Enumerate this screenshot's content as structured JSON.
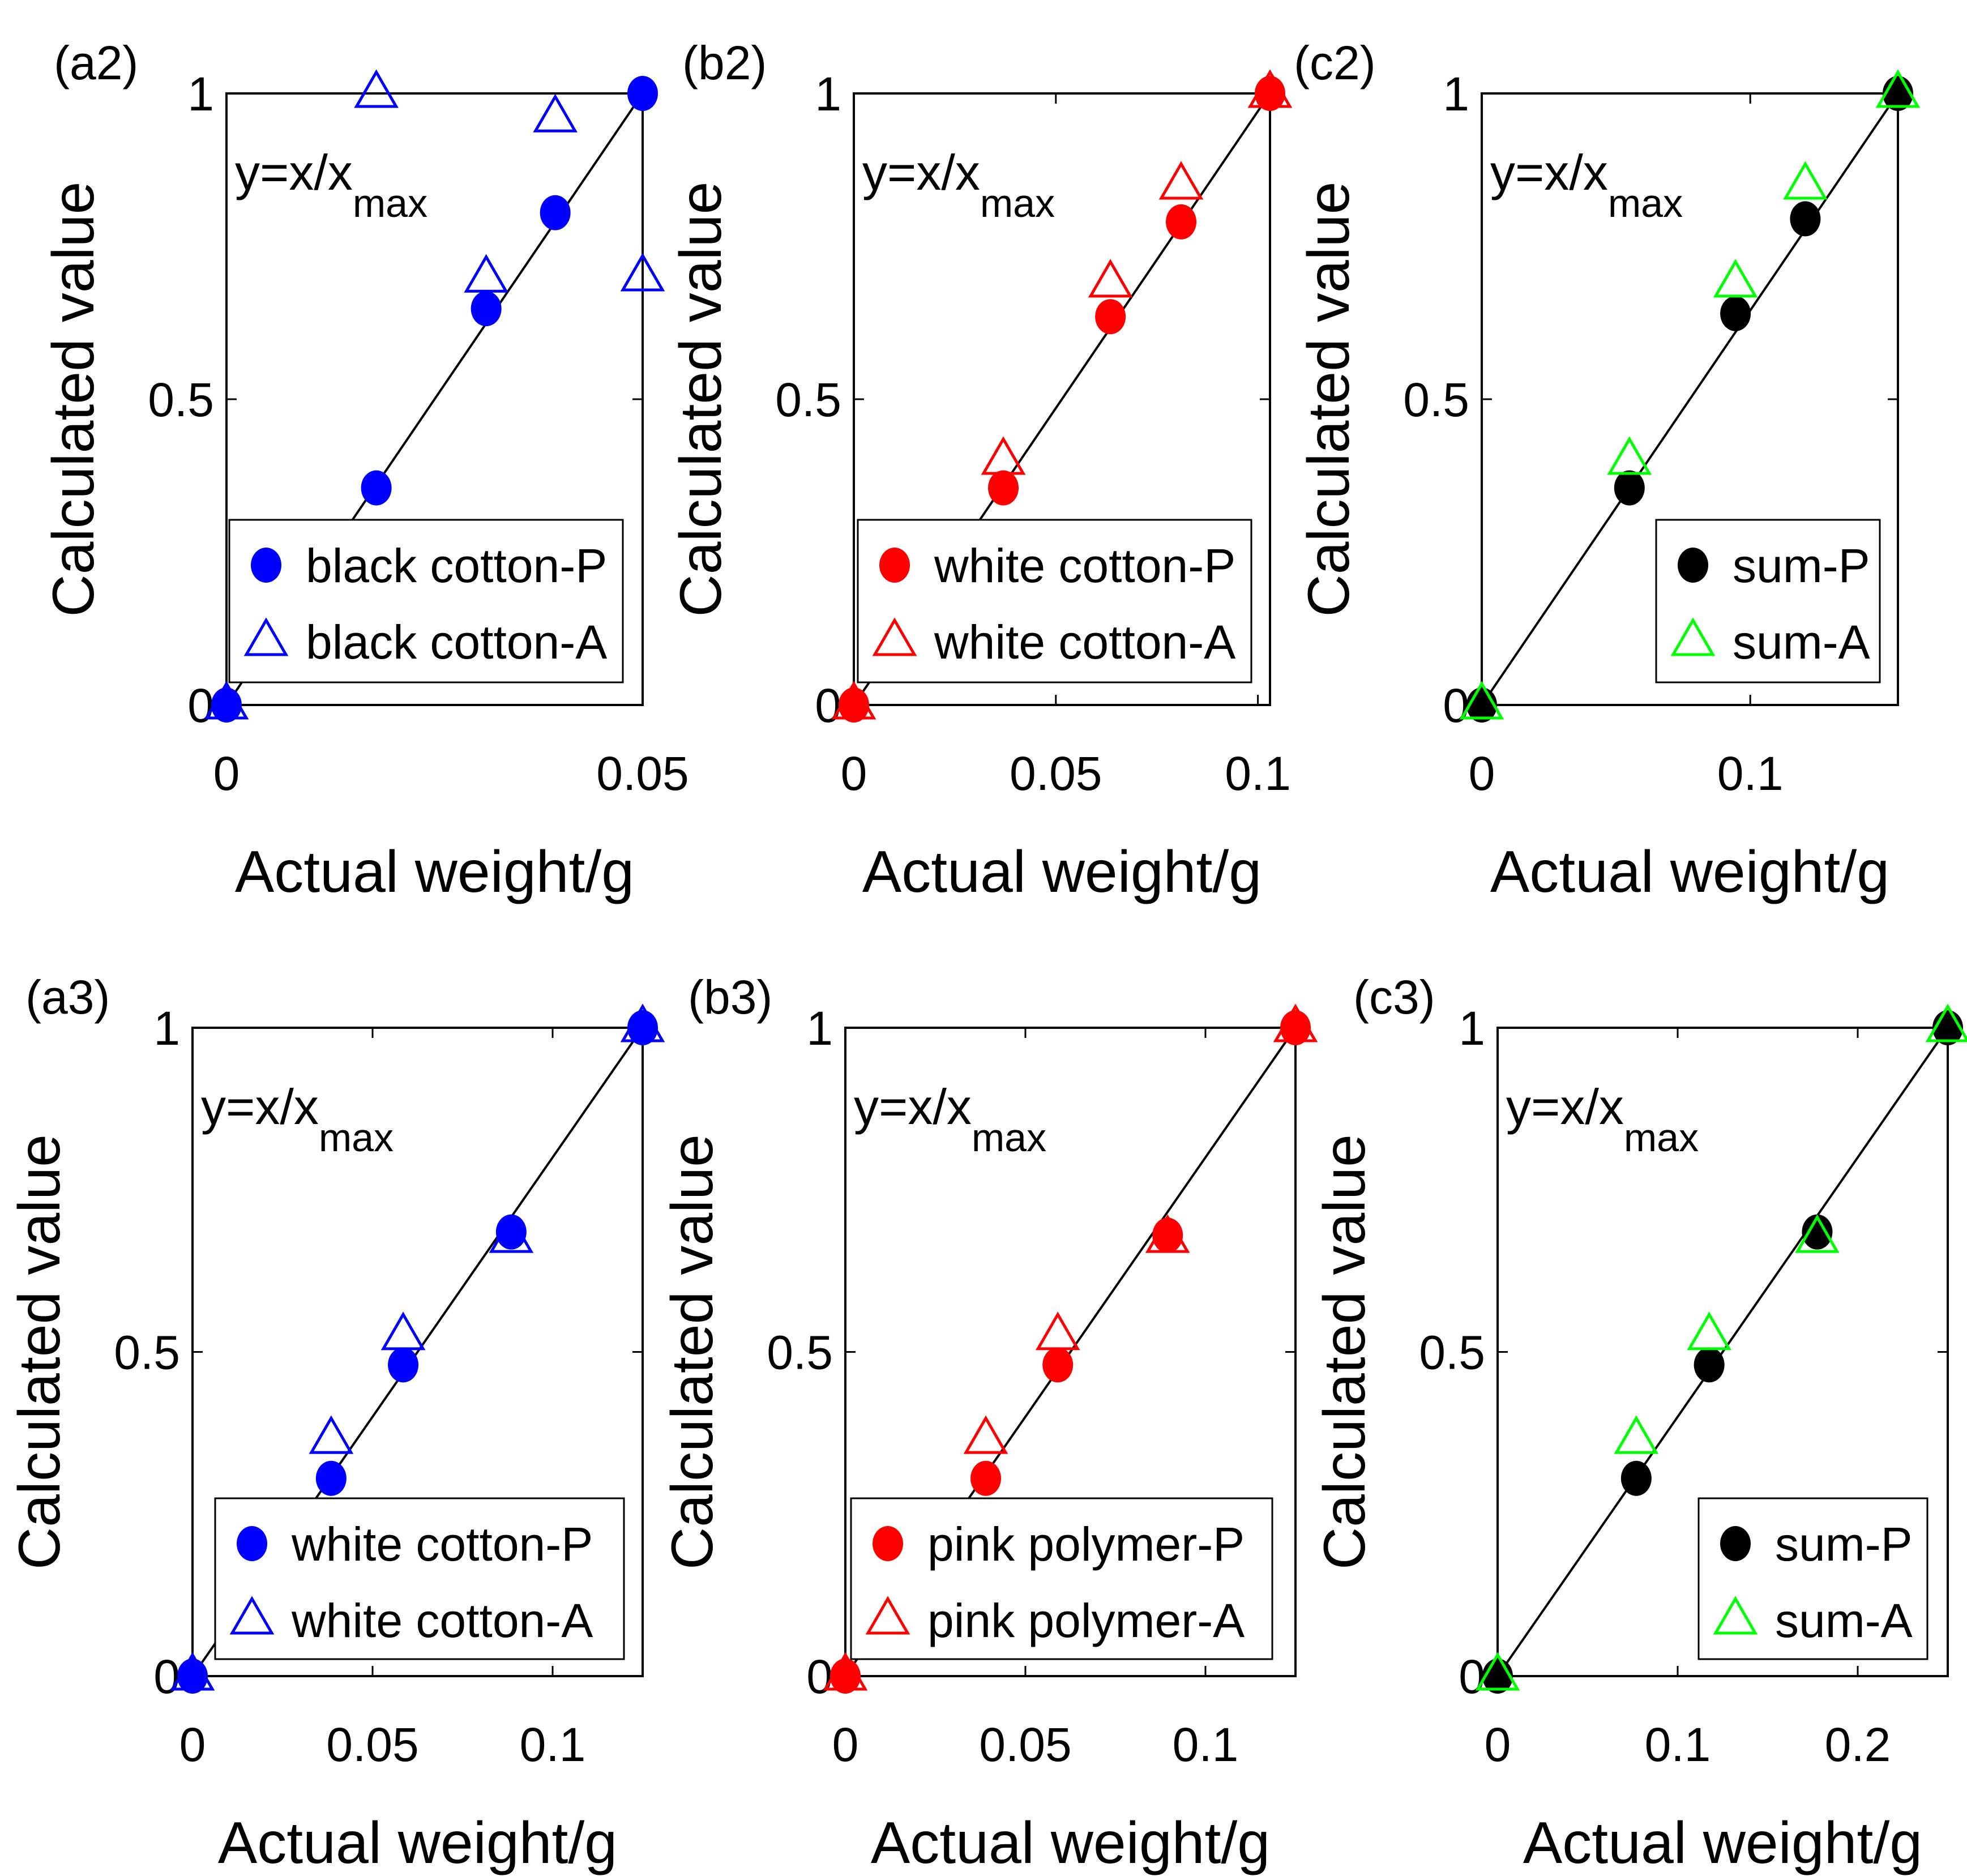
{
  "chart_data": [
    {
      "type": "scatter",
      "panel_label": "(a2)",
      "xlabel": "Actual weight/g",
      "ylabel": "Calculated value",
      "xlim": [
        0,
        0.05
      ],
      "ylim": [
        0,
        1
      ],
      "xticks": [
        {
          "value": 0,
          "label": "0"
        },
        {
          "value": 0.05,
          "label": "0.05"
        }
      ],
      "yticks": [
        {
          "value": 0,
          "label": "0"
        },
        {
          "value": 0.5,
          "label": "0.5"
        },
        {
          "value": 1,
          "label": "1"
        }
      ],
      "annotation": {
        "main": "y=x/x",
        "sub": "max"
      },
      "fit_line": {
        "x": [
          0,
          0.05
        ],
        "y": [
          0,
          1
        ]
      },
      "legend_position": "bottom-right",
      "series": [
        {
          "name": "black cotton-P",
          "marker": "circle",
          "color": "#0000ff",
          "x": [
            0,
            0.018,
            0.0312,
            0.0395,
            0.05
          ],
          "y": [
            0,
            0.355,
            0.648,
            0.805,
            1.0
          ]
        },
        {
          "name": "black cotton-A",
          "marker": "triangle",
          "color": "#0000ff",
          "x": [
            0,
            0.018,
            0.0312,
            0.0395,
            0.05
          ],
          "y": [
            0,
            1.0,
            0.698,
            0.96,
            0.7
          ]
        }
      ]
    },
    {
      "type": "scatter",
      "panel_label": "(b2)",
      "xlabel": "Actual weight/g",
      "ylabel": "Calculated value",
      "xlim": [
        0,
        0.103
      ],
      "ylim": [
        0,
        1
      ],
      "xticks": [
        {
          "value": 0,
          "label": "0"
        },
        {
          "value": 0.05,
          "label": "0.05"
        },
        {
          "value": 0.1,
          "label": "0.1"
        }
      ],
      "yticks": [
        {
          "value": 0,
          "label": "0"
        },
        {
          "value": 0.5,
          "label": "0.5"
        },
        {
          "value": 1,
          "label": "1"
        }
      ],
      "annotation": {
        "main": "y=x/x",
        "sub": "max"
      },
      "fit_line": {
        "x": [
          0,
          0.103
        ],
        "y": [
          0,
          1
        ]
      },
      "legend_position": "bottom-right",
      "series": [
        {
          "name": "white cotton-P",
          "marker": "circle",
          "color": "#ff0000",
          "x": [
            0,
            0.037,
            0.0635,
            0.081,
            0.103
          ],
          "y": [
            0,
            0.355,
            0.635,
            0.79,
            1.0
          ]
        },
        {
          "name": "white cotton-A",
          "marker": "triangle",
          "color": "#ff0000",
          "x": [
            0,
            0.037,
            0.0635,
            0.081,
            0.103
          ],
          "y": [
            0,
            0.4,
            0.69,
            0.85,
            1.0
          ]
        }
      ]
    },
    {
      "type": "scatter",
      "panel_label": "(c2)",
      "xlabel": "Actual weight/g",
      "ylabel": "Calculated value",
      "xlim": [
        0,
        0.155
      ],
      "ylim": [
        0,
        1
      ],
      "xticks": [
        {
          "value": 0,
          "label": "0"
        },
        {
          "value": 0.1,
          "label": "0.1"
        }
      ],
      "yticks": [
        {
          "value": 0,
          "label": "0"
        },
        {
          "value": 0.5,
          "label": "0.5"
        },
        {
          "value": 1,
          "label": "1"
        }
      ],
      "annotation": {
        "main": "y=x/x",
        "sub": "max"
      },
      "fit_line": {
        "x": [
          0,
          0.155
        ],
        "y": [
          0,
          1
        ]
      },
      "legend_position": "bottom-right",
      "series": [
        {
          "name": "sum-P",
          "marker": "circle",
          "color": "#000000",
          "x": [
            0,
            0.055,
            0.0945,
            0.1205,
            0.155
          ],
          "y": [
            0,
            0.355,
            0.64,
            0.795,
            1.0
          ]
        },
        {
          "name": "sum-A",
          "marker": "triangle",
          "color": "#00ff00",
          "x": [
            0,
            0.055,
            0.0945,
            0.1205,
            0.155
          ],
          "y": [
            0,
            0.4,
            0.69,
            0.85,
            1.0
          ]
        }
      ]
    },
    {
      "type": "scatter",
      "panel_label": "(a3)",
      "xlabel": "Actual weight/g",
      "ylabel": "Calculated value",
      "xlim": [
        0,
        0.125
      ],
      "ylim": [
        0,
        1
      ],
      "xticks": [
        {
          "value": 0,
          "label": "0"
        },
        {
          "value": 0.05,
          "label": "0.05"
        },
        {
          "value": 0.1,
          "label": "0.1"
        }
      ],
      "yticks": [
        {
          "value": 0,
          "label": "0"
        },
        {
          "value": 0.5,
          "label": "0.5"
        },
        {
          "value": 1,
          "label": "1"
        }
      ],
      "annotation": {
        "main": "y=x/x",
        "sub": "max"
      },
      "fit_line": {
        "x": [
          0,
          0.125
        ],
        "y": [
          0,
          1
        ]
      },
      "legend_position": "bottom-right",
      "series": [
        {
          "name": "white cotton-P",
          "marker": "circle",
          "color": "#0000ff",
          "x": [
            0,
            0.0385,
            0.0585,
            0.0885,
            0.125
          ],
          "y": [
            0,
            0.305,
            0.48,
            0.685,
            1.0
          ]
        },
        {
          "name": "white cotton-A",
          "marker": "triangle",
          "color": "#0000ff",
          "x": [
            0,
            0.0385,
            0.0585,
            0.0885,
            0.125
          ],
          "y": [
            0,
            0.365,
            0.525,
            0.675,
            1.0
          ]
        }
      ]
    },
    {
      "type": "scatter",
      "panel_label": "(b3)",
      "xlabel": "Actual weight/g",
      "ylabel": "Calculated value",
      "xlim": [
        0,
        0.125
      ],
      "ylim": [
        0,
        1
      ],
      "xticks": [
        {
          "value": 0,
          "label": "0"
        },
        {
          "value": 0.05,
          "label": "0.05"
        },
        {
          "value": 0.1,
          "label": "0.1"
        }
      ],
      "yticks": [
        {
          "value": 0,
          "label": "0"
        },
        {
          "value": 0.5,
          "label": "0.5"
        },
        {
          "value": 1,
          "label": "1"
        }
      ],
      "annotation": {
        "main": "y=x/x",
        "sub": "max"
      },
      "fit_line": {
        "x": [
          0,
          0.125
        ],
        "y": [
          0,
          1
        ]
      },
      "legend_position": "bottom-right",
      "series": [
        {
          "name": "pink polymer-P",
          "marker": "circle",
          "color": "#ff0000",
          "x": [
            0,
            0.039,
            0.059,
            0.0895,
            0.125
          ],
          "y": [
            0,
            0.305,
            0.48,
            0.68,
            1.0
          ]
        },
        {
          "name": "pink polymer-A",
          "marker": "triangle",
          "color": "#ff0000",
          "x": [
            0,
            0.039,
            0.059,
            0.0895,
            0.125
          ],
          "y": [
            0,
            0.365,
            0.525,
            0.675,
            1.0
          ]
        }
      ]
    },
    {
      "type": "scatter",
      "panel_label": "(c3)",
      "xlabel": "Actual weight/g",
      "ylabel": "Calculated value",
      "xlim": [
        0,
        0.25
      ],
      "ylim": [
        0,
        1
      ],
      "xticks": [
        {
          "value": 0,
          "label": "0"
        },
        {
          "value": 0.1,
          "label": "0.1"
        },
        {
          "value": 0.2,
          "label": "0.2"
        }
      ],
      "yticks": [
        {
          "value": 0,
          "label": "0"
        },
        {
          "value": 0.5,
          "label": "0.5"
        },
        {
          "value": 1,
          "label": "1"
        }
      ],
      "annotation": {
        "main": "y=x/x",
        "sub": "max"
      },
      "fit_line": {
        "x": [
          0,
          0.25
        ],
        "y": [
          0,
          1
        ]
      },
      "legend_position": "bottom-right",
      "series": [
        {
          "name": "sum-P",
          "marker": "circle",
          "color": "#000000",
          "x": [
            0,
            0.077,
            0.1175,
            0.1775,
            0.25
          ],
          "y": [
            0,
            0.305,
            0.48,
            0.685,
            1.0
          ]
        },
        {
          "name": "sum-A",
          "marker": "triangle",
          "color": "#00ff00",
          "x": [
            0,
            0.077,
            0.1175,
            0.1775,
            0.25
          ],
          "y": [
            0,
            0.365,
            0.525,
            0.675,
            1.0
          ]
        }
      ]
    }
  ]
}
